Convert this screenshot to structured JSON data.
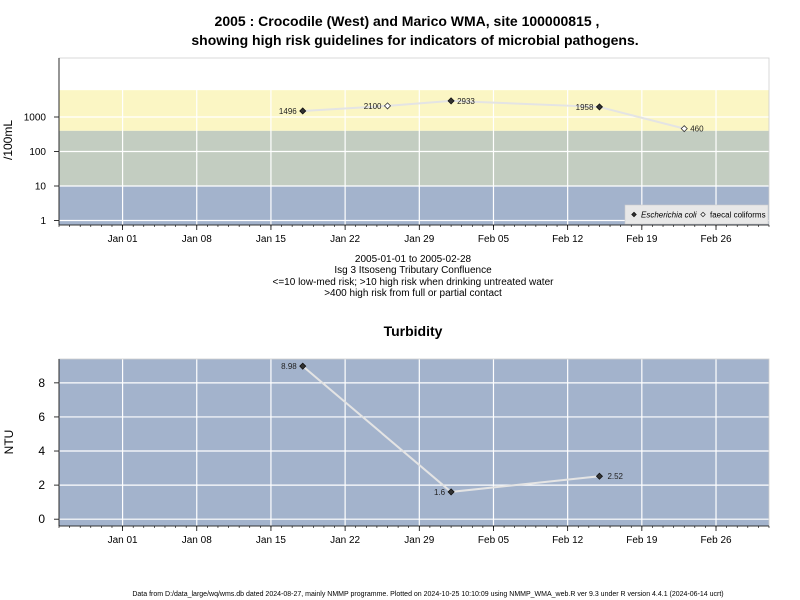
{
  "header": {
    "title_line1": "2005 : Crocodile (West) and Marico WMA, site 100000815 ,",
    "title_line2": "showing high risk guidelines for indicators of microbial pathogens."
  },
  "subtitle": {
    "line1": "2005-01-01 to 2005-02-28",
    "line2": "Isg 3 Itsoseng Tributary Confluence",
    "line3": "<=10 low-med risk; >10 high risk when drinking untreated water",
    "line4": ">400 high risk from full or partial contact"
  },
  "footer": {
    "text": "Data from D:/data_large/wq/wms.db dated 2024-08-27, mainly NMMP programme. Plotted on 2024-10-25 10:10:09 using NMMP_WMA_web.R ver 9.3 under R version 4.4.1 (2024-06-14 ucrt)"
  },
  "chart_data": [
    {
      "type": "scatter",
      "title": "",
      "xlabel": "",
      "ylabel": "/100mL",
      "y_scale": "log",
      "y_ticks": [
        "1",
        "10",
        "100",
        "1000"
      ],
      "x_ticks": [
        "Jan 01",
        "Jan 08",
        "Jan 15",
        "Jan 22",
        "Jan 29",
        "Feb 05",
        "Feb 12",
        "Feb 19",
        "Feb 26"
      ],
      "xlim": [
        "2004-12-26",
        "2005-03-03"
      ],
      "bands": [
        {
          "from": 0.12,
          "to": 10,
          "color": "#a3b3cc",
          "meaning": "low-med risk"
        },
        {
          "from": 10,
          "to": 400,
          "color": "#c3cdc1",
          "meaning": "high risk when drinking untreated water"
        },
        {
          "from": 400,
          "to": 6000,
          "color": "#fbf6c4",
          "meaning": "high risk from full or partial contact"
        }
      ],
      "grid": true,
      "legend_position": "bottom-right",
      "series": [
        {
          "name": "Escherichia coli",
          "marker": "filled-diamond",
          "x": [
            "2005-01-18",
            "2005-02-01",
            "2005-02-15"
          ],
          "y": [
            1496,
            2933,
            1958
          ],
          "labels": [
            "1496",
            "2933",
            "1958"
          ]
        },
        {
          "name": "faecal coliforms",
          "marker": "open-diamond",
          "x": [
            "2005-01-26",
            "2005-02-23"
          ],
          "y": [
            2100,
            460
          ],
          "labels": [
            "2100",
            "460"
          ]
        }
      ]
    },
    {
      "type": "line",
      "title": "Turbidity",
      "xlabel": "",
      "ylabel": "NTU",
      "y_ticks": [
        "0",
        "2",
        "4",
        "6",
        "8"
      ],
      "ylim": [
        -0.4,
        9.4
      ],
      "x_ticks": [
        "Jan 01",
        "Jan 08",
        "Jan 15",
        "Jan 22",
        "Jan 29",
        "Feb 05",
        "Feb 12",
        "Feb 19",
        "Feb 26"
      ],
      "xlim": [
        "2004-12-26",
        "2005-03-03"
      ],
      "grid": true,
      "background": "#a3b3cc",
      "series": [
        {
          "marker": "filled-diamond",
          "x": [
            "2005-01-18",
            "2005-02-01",
            "2005-02-15"
          ],
          "y": [
            8.98,
            1.6,
            2.52
          ],
          "labels": [
            "8.98",
            "1.6",
            "2.52"
          ]
        }
      ]
    }
  ]
}
